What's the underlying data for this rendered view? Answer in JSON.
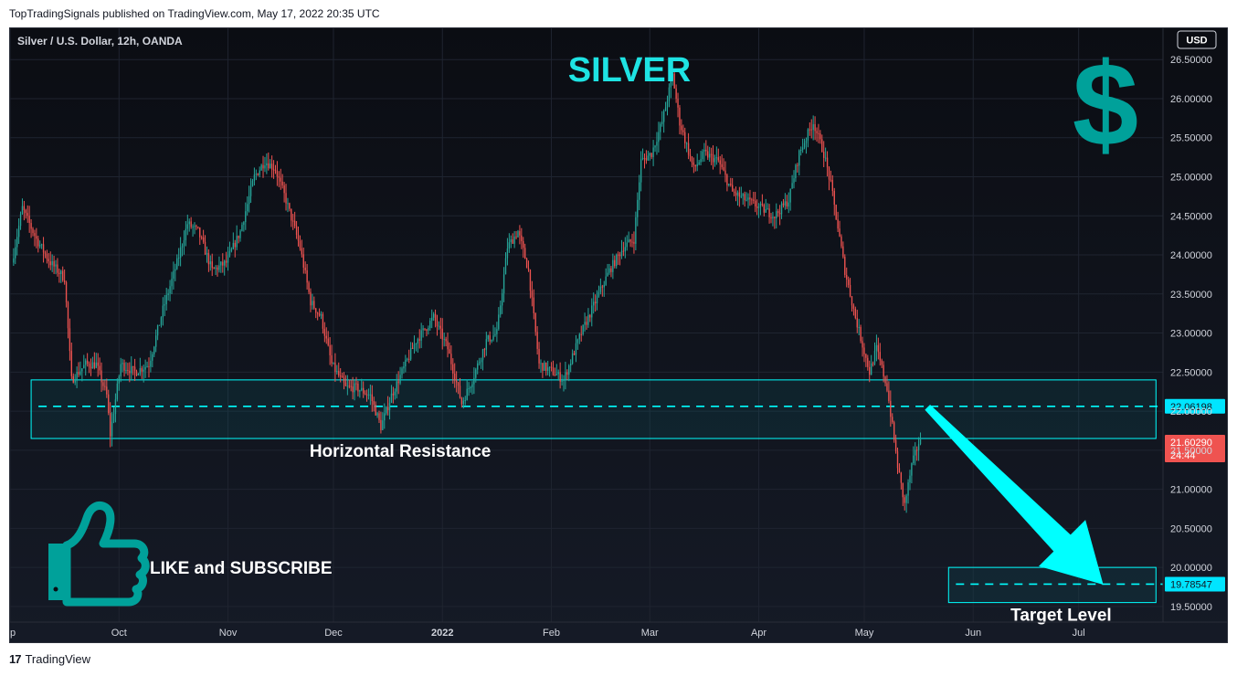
{
  "header": {
    "published_line": "TopTradingSignals published on TradingView.com, May 17, 2022 20:35 UTC"
  },
  "footer": {
    "brand": "TradingView"
  },
  "chart_data": {
    "type": "candlestick",
    "symbol_line": "Silver / U.S. Dollar, 12h, OANDA",
    "currency": "USD",
    "title": "SILVER",
    "ylim": [
      19.3,
      26.9
    ],
    "y_ticks": [
      "26.50000",
      "26.00000",
      "25.50000",
      "25.00000",
      "24.50000",
      "24.00000",
      "23.50000",
      "23.00000",
      "22.50000",
      "22.00000",
      "21.50000",
      "21.00000",
      "20.50000",
      "20.00000",
      "19.50000"
    ],
    "x_ticks": [
      {
        "label": "ep",
        "x": "2021-08-31"
      },
      {
        "label": "Oct",
        "x": "2021-10-01"
      },
      {
        "label": "Nov",
        "x": "2021-11-01"
      },
      {
        "label": "Dec",
        "x": "2021-12-01"
      },
      {
        "label": "2022",
        "x": "2022-01-01"
      },
      {
        "label": "Feb",
        "x": "2022-02-01"
      },
      {
        "label": "Mar",
        "x": "2022-03-01"
      },
      {
        "label": "Apr",
        "x": "2022-04-01"
      },
      {
        "label": "May",
        "x": "2022-05-01"
      },
      {
        "label": "Jun",
        "x": "2022-06-01"
      },
      {
        "label": "Jul",
        "x": "2022-07-01"
      }
    ],
    "x_range": [
      "2021-08-31",
      "2022-07-25"
    ],
    "price_path": [
      {
        "x": "2021-09-01",
        "y": 23.9
      },
      {
        "x": "2021-09-04",
        "y": 24.6
      },
      {
        "x": "2021-09-08",
        "y": 24.2
      },
      {
        "x": "2021-09-12",
        "y": 23.9
      },
      {
        "x": "2021-09-16",
        "y": 23.7
      },
      {
        "x": "2021-09-18",
        "y": 22.4
      },
      {
        "x": "2021-09-22",
        "y": 22.6
      },
      {
        "x": "2021-09-25",
        "y": 22.6
      },
      {
        "x": "2021-09-28",
        "y": 22.2
      },
      {
        "x": "2021-09-29",
        "y": 21.7
      },
      {
        "x": "2021-10-02",
        "y": 22.6
      },
      {
        "x": "2021-10-06",
        "y": 22.5
      },
      {
        "x": "2021-10-10",
        "y": 22.6
      },
      {
        "x": "2021-10-14",
        "y": 23.3
      },
      {
        "x": "2021-10-18",
        "y": 23.9
      },
      {
        "x": "2021-10-21",
        "y": 24.4
      },
      {
        "x": "2021-10-24",
        "y": 24.3
      },
      {
        "x": "2021-10-28",
        "y": 23.8
      },
      {
        "x": "2021-11-01",
        "y": 23.9
      },
      {
        "x": "2021-11-05",
        "y": 24.3
      },
      {
        "x": "2021-11-09",
        "y": 25.0
      },
      {
        "x": "2021-11-12",
        "y": 25.2
      },
      {
        "x": "2021-11-15",
        "y": 25.1
      },
      {
        "x": "2021-11-18",
        "y": 24.7
      },
      {
        "x": "2021-11-22",
        "y": 24.1
      },
      {
        "x": "2021-11-25",
        "y": 23.4
      },
      {
        "x": "2021-11-28",
        "y": 23.2
      },
      {
        "x": "2021-12-01",
        "y": 22.6
      },
      {
        "x": "2021-12-05",
        "y": 22.3
      },
      {
        "x": "2021-12-08",
        "y": 22.3
      },
      {
        "x": "2021-12-12",
        "y": 22.2
      },
      {
        "x": "2021-12-15",
        "y": 21.8
      },
      {
        "x": "2021-12-18",
        "y": 22.2
      },
      {
        "x": "2021-12-21",
        "y": 22.5
      },
      {
        "x": "2021-12-25",
        "y": 22.9
      },
      {
        "x": "2021-12-30",
        "y": 23.2
      },
      {
        "x": "2022-01-03",
        "y": 22.8
      },
      {
        "x": "2022-01-07",
        "y": 22.1
      },
      {
        "x": "2022-01-10",
        "y": 22.4
      },
      {
        "x": "2022-01-14",
        "y": 22.9
      },
      {
        "x": "2022-01-17",
        "y": 23.0
      },
      {
        "x": "2022-01-20",
        "y": 24.1
      },
      {
        "x": "2022-01-23",
        "y": 24.3
      },
      {
        "x": "2022-01-26",
        "y": 23.8
      },
      {
        "x": "2022-01-29",
        "y": 22.6
      },
      {
        "x": "2022-02-02",
        "y": 22.5
      },
      {
        "x": "2022-02-05",
        "y": 22.4
      },
      {
        "x": "2022-02-10",
        "y": 23.0
      },
      {
        "x": "2022-02-14",
        "y": 23.4
      },
      {
        "x": "2022-02-18",
        "y": 23.8
      },
      {
        "x": "2022-02-22",
        "y": 24.1
      },
      {
        "x": "2022-02-25",
        "y": 24.2
      },
      {
        "x": "2022-02-27",
        "y": 25.2
      },
      {
        "x": "2022-03-02",
        "y": 25.3
      },
      {
        "x": "2022-03-05",
        "y": 25.7
      },
      {
        "x": "2022-03-08",
        "y": 26.3
      },
      {
        "x": "2022-03-10",
        "y": 25.7
      },
      {
        "x": "2022-03-14",
        "y": 25.1
      },
      {
        "x": "2022-03-17",
        "y": 25.3
      },
      {
        "x": "2022-03-21",
        "y": 25.2
      },
      {
        "x": "2022-03-25",
        "y": 24.8
      },
      {
        "x": "2022-03-29",
        "y": 24.7
      },
      {
        "x": "2022-04-02",
        "y": 24.6
      },
      {
        "x": "2022-04-06",
        "y": 24.5
      },
      {
        "x": "2022-04-10",
        "y": 24.7
      },
      {
        "x": "2022-04-13",
        "y": 25.3
      },
      {
        "x": "2022-04-17",
        "y": 25.7
      },
      {
        "x": "2022-04-20",
        "y": 25.3
      },
      {
        "x": "2022-04-22",
        "y": 24.9
      },
      {
        "x": "2022-04-26",
        "y": 23.8
      },
      {
        "x": "2022-04-29",
        "y": 23.2
      },
      {
        "x": "2022-05-03",
        "y": 22.5
      },
      {
        "x": "2022-05-05",
        "y": 22.8
      },
      {
        "x": "2022-05-08",
        "y": 22.3
      },
      {
        "x": "2022-05-11",
        "y": 21.3
      },
      {
        "x": "2022-05-13",
        "y": 20.8
      },
      {
        "x": "2022-05-15",
        "y": 21.3
      },
      {
        "x": "2022-05-17",
        "y": 21.6
      }
    ],
    "resistance_zone": {
      "from": "2021-09-06",
      "to": "2022-07-23",
      "low": 21.65,
      "high": 22.4,
      "level": 22.06198,
      "label": "Horizontal Resistance"
    },
    "target_zone": {
      "from": "2022-05-25",
      "to": "2022-07-23",
      "low": 19.55,
      "high": 20.0,
      "level": 19.78547,
      "label": "Target Level"
    },
    "projection_arrow": {
      "from": {
        "x": "2022-05-19",
        "y": 22.05
      },
      "to": {
        "x": "2022-07-08",
        "y": 19.78
      }
    },
    "price_labels": [
      {
        "value": "22.06198",
        "y": 22.06198,
        "kind": "resistance"
      },
      {
        "value": "21.60290",
        "y": 21.6029,
        "kind": "last",
        "countdown": "24:44"
      },
      {
        "value": "19.78547",
        "y": 19.78547,
        "kind": "target"
      }
    ],
    "annotations": {
      "like_text": "LIKE and SUBSCRIBE",
      "dollar_icon": "dollar-sign",
      "thumbs_icon": "thumbs-up"
    },
    "colors": {
      "up": "#26a69a",
      "down": "#ef5350",
      "accent": "#00ffff",
      "accent_label": "#00e5ff",
      "icon": "#00a19a",
      "grid": "#1f2430"
    }
  }
}
